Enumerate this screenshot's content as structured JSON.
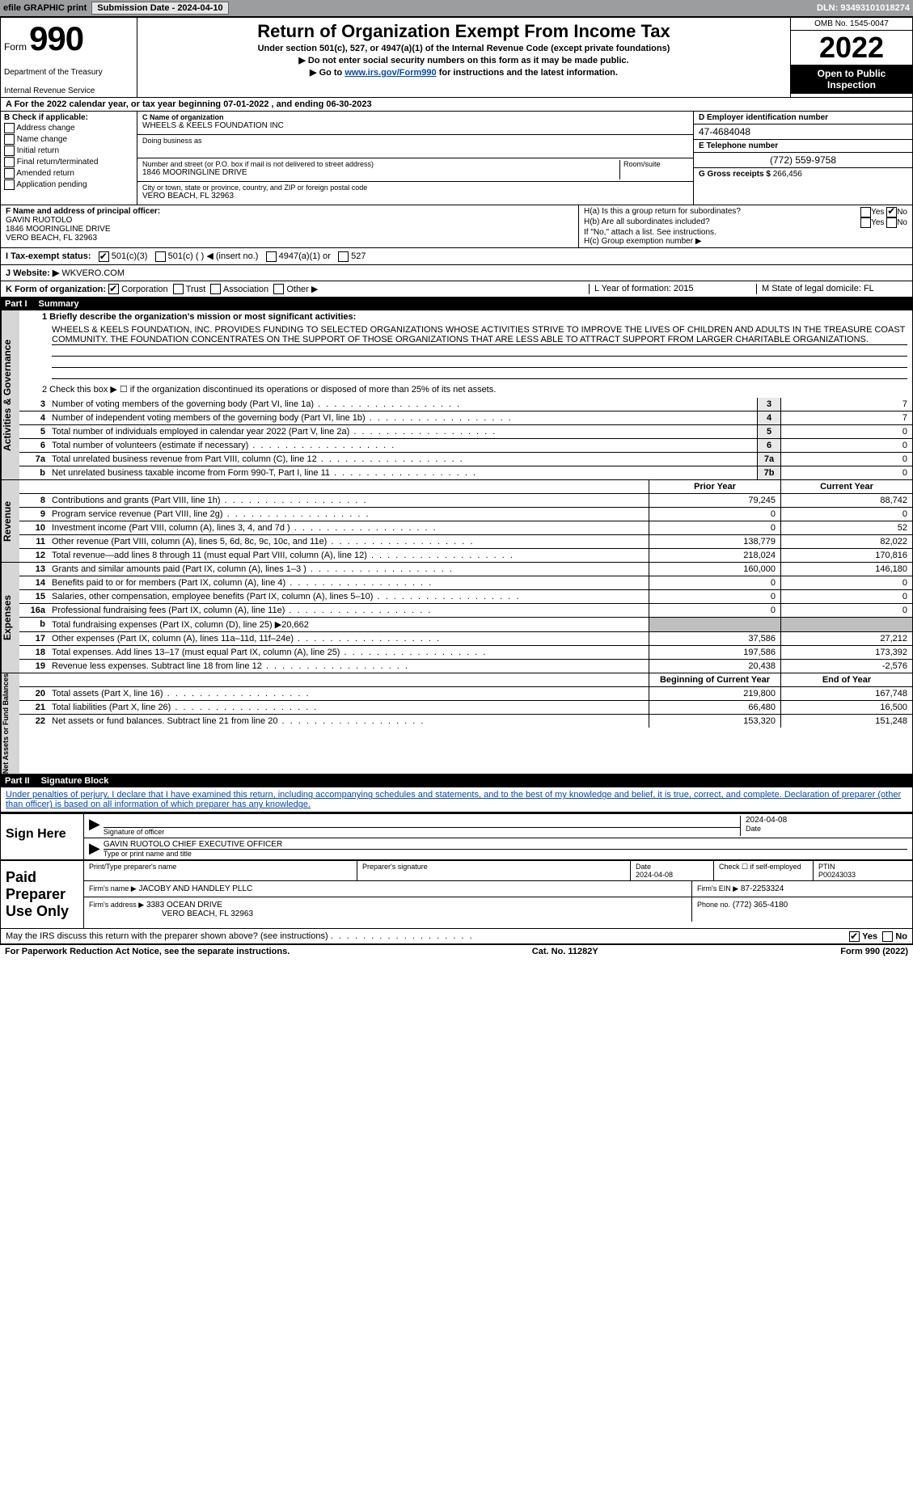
{
  "topbar": {
    "efile_label": "efile GRAPHIC print",
    "submission_label": "Submission Date - 2024-04-10",
    "dln_label": "DLN: 93493101018274"
  },
  "header": {
    "form_word": "Form",
    "form_number": "990",
    "dept": "Department of the Treasury",
    "irs": "Internal Revenue Service",
    "title": "Return of Organization Exempt From Income Tax",
    "subtitle": "Under section 501(c), 527, or 4947(a)(1) of the Internal Revenue Code (except private foundations)",
    "warn": "▶ Do not enter social security numbers on this form as it may be made public.",
    "goto": "▶ Go to ",
    "goto_link": "www.irs.gov/Form990",
    "goto_after": " for instructions and the latest information.",
    "omb": "OMB No. 1545-0047",
    "year": "2022",
    "open": "Open to Public Inspection"
  },
  "rowA": "A For the 2022 calendar year, or tax year beginning 07-01-2022    , and ending 06-30-2023",
  "boxB": {
    "title": "B Check if applicable:",
    "opts": [
      "Address change",
      "Name change",
      "Initial return",
      "Final return/terminated",
      "Amended return",
      "Application pending"
    ]
  },
  "boxC": {
    "name_label": "C Name of organization",
    "name": "WHEELS & KEELS FOUNDATION INC",
    "dba_label": "Doing business as",
    "addr_label": "Number and street (or P.O. box if mail is not delivered to street address)",
    "room_label": "Room/suite",
    "addr": "1846 MOORINGLINE DRIVE",
    "city_label": "City or town, state or province, country, and ZIP or foreign postal code",
    "city": "VERO BEACH, FL  32963"
  },
  "boxD": {
    "label": "D Employer identification number",
    "value": "47-4684048",
    "e_label": "E Telephone number",
    "e_value": "(772) 559-9758",
    "g_label": "G Gross receipts $",
    "g_value": "266,456"
  },
  "boxF": {
    "label": "F  Name and address of principal officer:",
    "name": "GAVIN RUOTOLO",
    "addr1": "1846 MOORINGLINE DRIVE",
    "addr2": "VERO BEACH, FL  32963"
  },
  "boxH": {
    "ha": "H(a)  Is this a group return for subordinates?",
    "hb": "H(b)  Are all subordinates included?",
    "hb_note": "If \"No,\" attach a list. See instructions.",
    "hc": "H(c)  Group exemption number ▶",
    "yes": "Yes",
    "no": "No"
  },
  "rowI": {
    "label": "I   Tax-exempt status:",
    "opts": [
      "501(c)(3)",
      "501(c) (   ) ◀ (insert no.)",
      "4947(a)(1) or",
      "527"
    ]
  },
  "rowJ": {
    "label": "J   Website: ▶",
    "value": "WKVERO.COM"
  },
  "rowK": {
    "label": "K Form of organization:",
    "opts": [
      "Corporation",
      "Trust",
      "Association",
      "Other ▶"
    ],
    "L": "L Year of formation: 2015",
    "M": "M State of legal domicile: FL"
  },
  "part1": {
    "title": "Part I",
    "sub": "Summary",
    "line1_label": "1  Briefly describe the organization's mission or most significant activities:",
    "mission": "WHEELS & KEELS FOUNDATION, INC. PROVIDES FUNDING TO SELECTED ORGANIZATIONS WHOSE ACTIVITIES STRIVE TO IMPROVE THE LIVES OF CHILDREN AND ADULTS IN THE TREASURE COAST COMMUNITY. THE FOUNDATION CONCENTRATES ON THE SUPPORT OF THOSE ORGANIZATIONS THAT ARE LESS ABLE TO ATTRACT SUPPORT FROM LARGER CHARITABLE ORGANIZATIONS.",
    "line2": "2   Check this box ▶ ☐  if the organization discontinued its operations or disposed of more than 25% of its net assets.",
    "gov_rows": [
      {
        "n": "3",
        "label": "Number of voting members of the governing body (Part VI, line 1a)",
        "box": "3",
        "v": "7"
      },
      {
        "n": "4",
        "label": "Number of independent voting members of the governing body (Part VI, line 1b)",
        "box": "4",
        "v": "7"
      },
      {
        "n": "5",
        "label": "Total number of individuals employed in calendar year 2022 (Part V, line 2a)",
        "box": "5",
        "v": "0"
      },
      {
        "n": "6",
        "label": "Total number of volunteers (estimate if necessary)",
        "box": "6",
        "v": "0"
      },
      {
        "n": "7a",
        "label": "Total unrelated business revenue from Part VIII, column (C), line 12",
        "box": "7a",
        "v": "0"
      },
      {
        "n": "b",
        "label": "Net unrelated business taxable income from Form 990-T, Part I, line 11",
        "box": "7b",
        "v": "0"
      }
    ],
    "prior_year": "Prior Year",
    "current_year": "Current Year",
    "rev_rows": [
      {
        "n": "8",
        "label": "Contributions and grants (Part VIII, line 1h)",
        "p": "79,245",
        "c": "88,742"
      },
      {
        "n": "9",
        "label": "Program service revenue (Part VIII, line 2g)",
        "p": "0",
        "c": "0"
      },
      {
        "n": "10",
        "label": "Investment income (Part VIII, column (A), lines 3, 4, and 7d )",
        "p": "0",
        "c": "52"
      },
      {
        "n": "11",
        "label": "Other revenue (Part VIII, column (A), lines 5, 6d, 8c, 9c, 10c, and 11e)",
        "p": "138,779",
        "c": "82,022"
      },
      {
        "n": "12",
        "label": "Total revenue—add lines 8 through 11 (must equal Part VIII, column (A), line 12)",
        "p": "218,024",
        "c": "170,816"
      }
    ],
    "exp_rows": [
      {
        "n": "13",
        "label": "Grants and similar amounts paid (Part IX, column (A), lines 1–3 )",
        "p": "160,000",
        "c": "146,180"
      },
      {
        "n": "14",
        "label": "Benefits paid to or for members (Part IX, column (A), line 4)",
        "p": "0",
        "c": "0"
      },
      {
        "n": "15",
        "label": "Salaries, other compensation, employee benefits (Part IX, column (A), lines 5–10)",
        "p": "0",
        "c": "0"
      },
      {
        "n": "16a",
        "label": "Professional fundraising fees (Part IX, column (A), line 11e)",
        "p": "0",
        "c": "0"
      },
      {
        "n": "b",
        "label": "Total fundraising expenses (Part IX, column (D), line 25) ▶20,662",
        "p": "",
        "c": "",
        "grey": true
      },
      {
        "n": "17",
        "label": "Other expenses (Part IX, column (A), lines 11a–11d, 11f–24e)",
        "p": "37,586",
        "c": "27,212"
      },
      {
        "n": "18",
        "label": "Total expenses. Add lines 13–17 (must equal Part IX, column (A), line 25)",
        "p": "197,586",
        "c": "173,392"
      },
      {
        "n": "19",
        "label": "Revenue less expenses. Subtract line 18 from line 12",
        "p": "20,438",
        "c": "-2,576"
      }
    ],
    "bcy": "Beginning of Current Year",
    "eoy": "End of Year",
    "net_rows": [
      {
        "n": "20",
        "label": "Total assets (Part X, line 16)",
        "p": "219,800",
        "c": "167,748"
      },
      {
        "n": "21",
        "label": "Total liabilities (Part X, line 26)",
        "p": "66,480",
        "c": "16,500"
      },
      {
        "n": "22",
        "label": "Net assets or fund balances. Subtract line 21 from line 20",
        "p": "153,320",
        "c": "151,248"
      }
    ]
  },
  "part2": {
    "title": "Part II",
    "sub": "Signature Block",
    "perjury": "Under penalties of perjury, I declare that I have examined this return, including accompanying schedules and statements, and to the best of my knowledge and belief, it is true, correct, and complete. Declaration of preparer (other than officer) is based on all information of which preparer has any knowledge."
  },
  "sign": {
    "here": "Sign Here",
    "sig_officer": "Signature of officer",
    "date": "Date",
    "date_val": "2024-04-08",
    "name_title": "GAVIN RUOTOLO  CHIEF EXECUTIVE OFFICER",
    "type_label": "Type or print name and title"
  },
  "paid": {
    "title": "Paid Preparer Use Only",
    "print_label": "Print/Type preparer's name",
    "sig_label": "Preparer's signature",
    "date_label": "Date",
    "date_val": "2024-04-08",
    "check_label": "Check ☐ if self-employed",
    "ptin_label": "PTIN",
    "ptin": "P00243033",
    "firm_name_label": "Firm's name   ▶",
    "firm_name": "JACOBY AND HANDLEY PLLC",
    "firm_ein_label": "Firm's EIN ▶",
    "firm_ein": "87-2253324",
    "firm_addr_label": "Firm's address ▶",
    "firm_addr1": "3383 OCEAN DRIVE",
    "firm_addr2": "VERO BEACH, FL  32963",
    "phone_label": "Phone no.",
    "phone": "(772) 365-4180"
  },
  "discuss": "May the IRS discuss this return with the preparer shown above? (see instructions)",
  "footer": {
    "pra": "For Paperwork Reduction Act Notice, see the separate instructions.",
    "cat": "Cat. No. 11282Y",
    "form": "Form 990 (2022)"
  },
  "side_labels": {
    "gov": "Activities & Governance",
    "rev": "Revenue",
    "exp": "Expenses",
    "net": "Net Assets or Fund Balances"
  }
}
